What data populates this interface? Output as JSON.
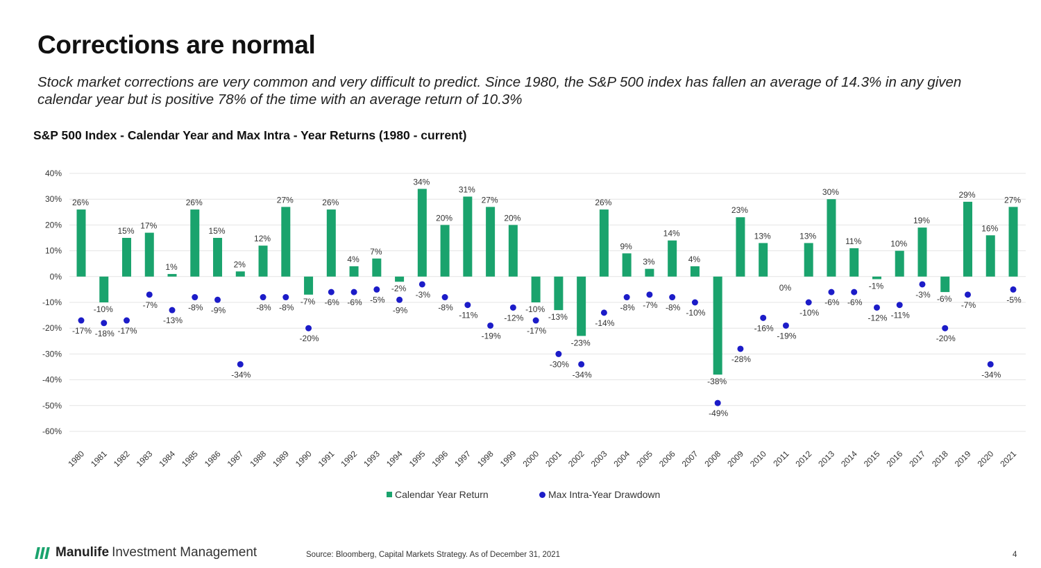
{
  "header": {
    "title": "Corrections are normal",
    "subtitle": "Stock market corrections are very common and very difficult to predict. Since 1980, the S&P 500 index has fallen an average of 14.3% in any given calendar year but is positive 78% of the time with an average return of 10.3%"
  },
  "chart_data": {
    "type": "bar",
    "title": "S&P 500 Index - Calendar Year and Max Intra - Year Returns (1980 - current)",
    "xlabel": "",
    "ylabel": "",
    "ylim": [
      -60,
      40
    ],
    "yticks": [
      40,
      30,
      20,
      10,
      0,
      -10,
      -20,
      -30,
      -40,
      -50,
      -60
    ],
    "ytick_labels": [
      "40%",
      "30%",
      "20%",
      "10%",
      "0%",
      "-10%",
      "-20%",
      "-30%",
      "-40%",
      "-50%",
      "-60%"
    ],
    "grid": true,
    "legend_position": "bottom",
    "categories": [
      "1980",
      "1981",
      "1982",
      "1983",
      "1984",
      "1985",
      "1986",
      "1987",
      "1988",
      "1989",
      "1990",
      "1991",
      "1992",
      "1993",
      "1994",
      "1995",
      "1996",
      "1997",
      "1998",
      "1999",
      "2000",
      "2001",
      "2002",
      "2003",
      "2004",
      "2005",
      "2006",
      "2007",
      "2008",
      "2009",
      "2010",
      "2011",
      "2012",
      "2013",
      "2014",
      "2015",
      "2016",
      "2017",
      "2018",
      "2019",
      "2020",
      "2021"
    ],
    "series": [
      {
        "name": "Calendar Year Return",
        "type": "bar",
        "color": "#1aa36d",
        "values": [
          26,
          -10,
          15,
          17,
          1,
          26,
          15,
          2,
          12,
          27,
          -7,
          26,
          4,
          7,
          -2,
          34,
          20,
          31,
          27,
          20,
          -10,
          -13,
          -23,
          26,
          9,
          3,
          14,
          4,
          -38,
          23,
          13,
          0,
          13,
          30,
          11,
          -1,
          10,
          19,
          -6,
          29,
          16,
          27
        ],
        "labels": [
          "26%",
          "-10%",
          "15%",
          "17%",
          "1%",
          "26%",
          "15%",
          "2%",
          "12%",
          "27%",
          "-7%",
          "26%",
          "4%",
          "7%",
          "-2%",
          "34%",
          "20%",
          "31%",
          "27%",
          "20%",
          "-10%",
          "-13%",
          "-23%",
          "26%",
          "9%",
          "3%",
          "14%",
          "4%",
          "-38%",
          "23%",
          "13%",
          "0%",
          "13%",
          "30%",
          "11%",
          "-1%",
          "10%",
          "19%",
          "-6%",
          "29%",
          "16%",
          "27%"
        ]
      },
      {
        "name": "Max Intra-Year Drawdown",
        "type": "scatter",
        "color": "#1c1cc8",
        "values": [
          -17,
          -18,
          -17,
          -7,
          -13,
          -8,
          -9,
          -34,
          -8,
          -8,
          -20,
          -6,
          -6,
          -5,
          -9,
          -3,
          -8,
          -11,
          -19,
          -12,
          -17,
          -30,
          -34,
          -14,
          -8,
          -7,
          -8,
          -10,
          -49,
          -28,
          -16,
          -19,
          -10,
          -6,
          -6,
          -12,
          -11,
          -3,
          -20,
          -7,
          -34,
          -5
        ],
        "labels": [
          "-17%",
          "-18%",
          "-17%",
          "-7%",
          "-13%",
          "-8%",
          "-9%",
          "-34%",
          "-8%",
          "-8%",
          "-20%",
          "-6%",
          "-6%",
          "-5%",
          "-9%",
          "-3%",
          "-8%",
          "-11%",
          "-19%",
          "-12%",
          "-17%",
          "-30%",
          "-34%",
          "-14%",
          "-8%",
          "-7%",
          "-8%",
          "-10%",
          "-49%",
          "-28%",
          "-16%",
          "-19%",
          "-10%",
          "-6%",
          "-6%",
          "-12%",
          "-11%",
          "-3%",
          "-20%",
          "-7%",
          "-34%",
          "-5%"
        ]
      }
    ]
  },
  "footer": {
    "brand": "Manulife",
    "brand_rest": "Investment Management",
    "source": "Source: Bloomberg, Capital Markets Strategy. As of December 31, 2021",
    "page_number": "4"
  },
  "colors": {
    "bar": "#1aa36d",
    "dot": "#1c1cc8",
    "grid": "#e2e2e2"
  }
}
